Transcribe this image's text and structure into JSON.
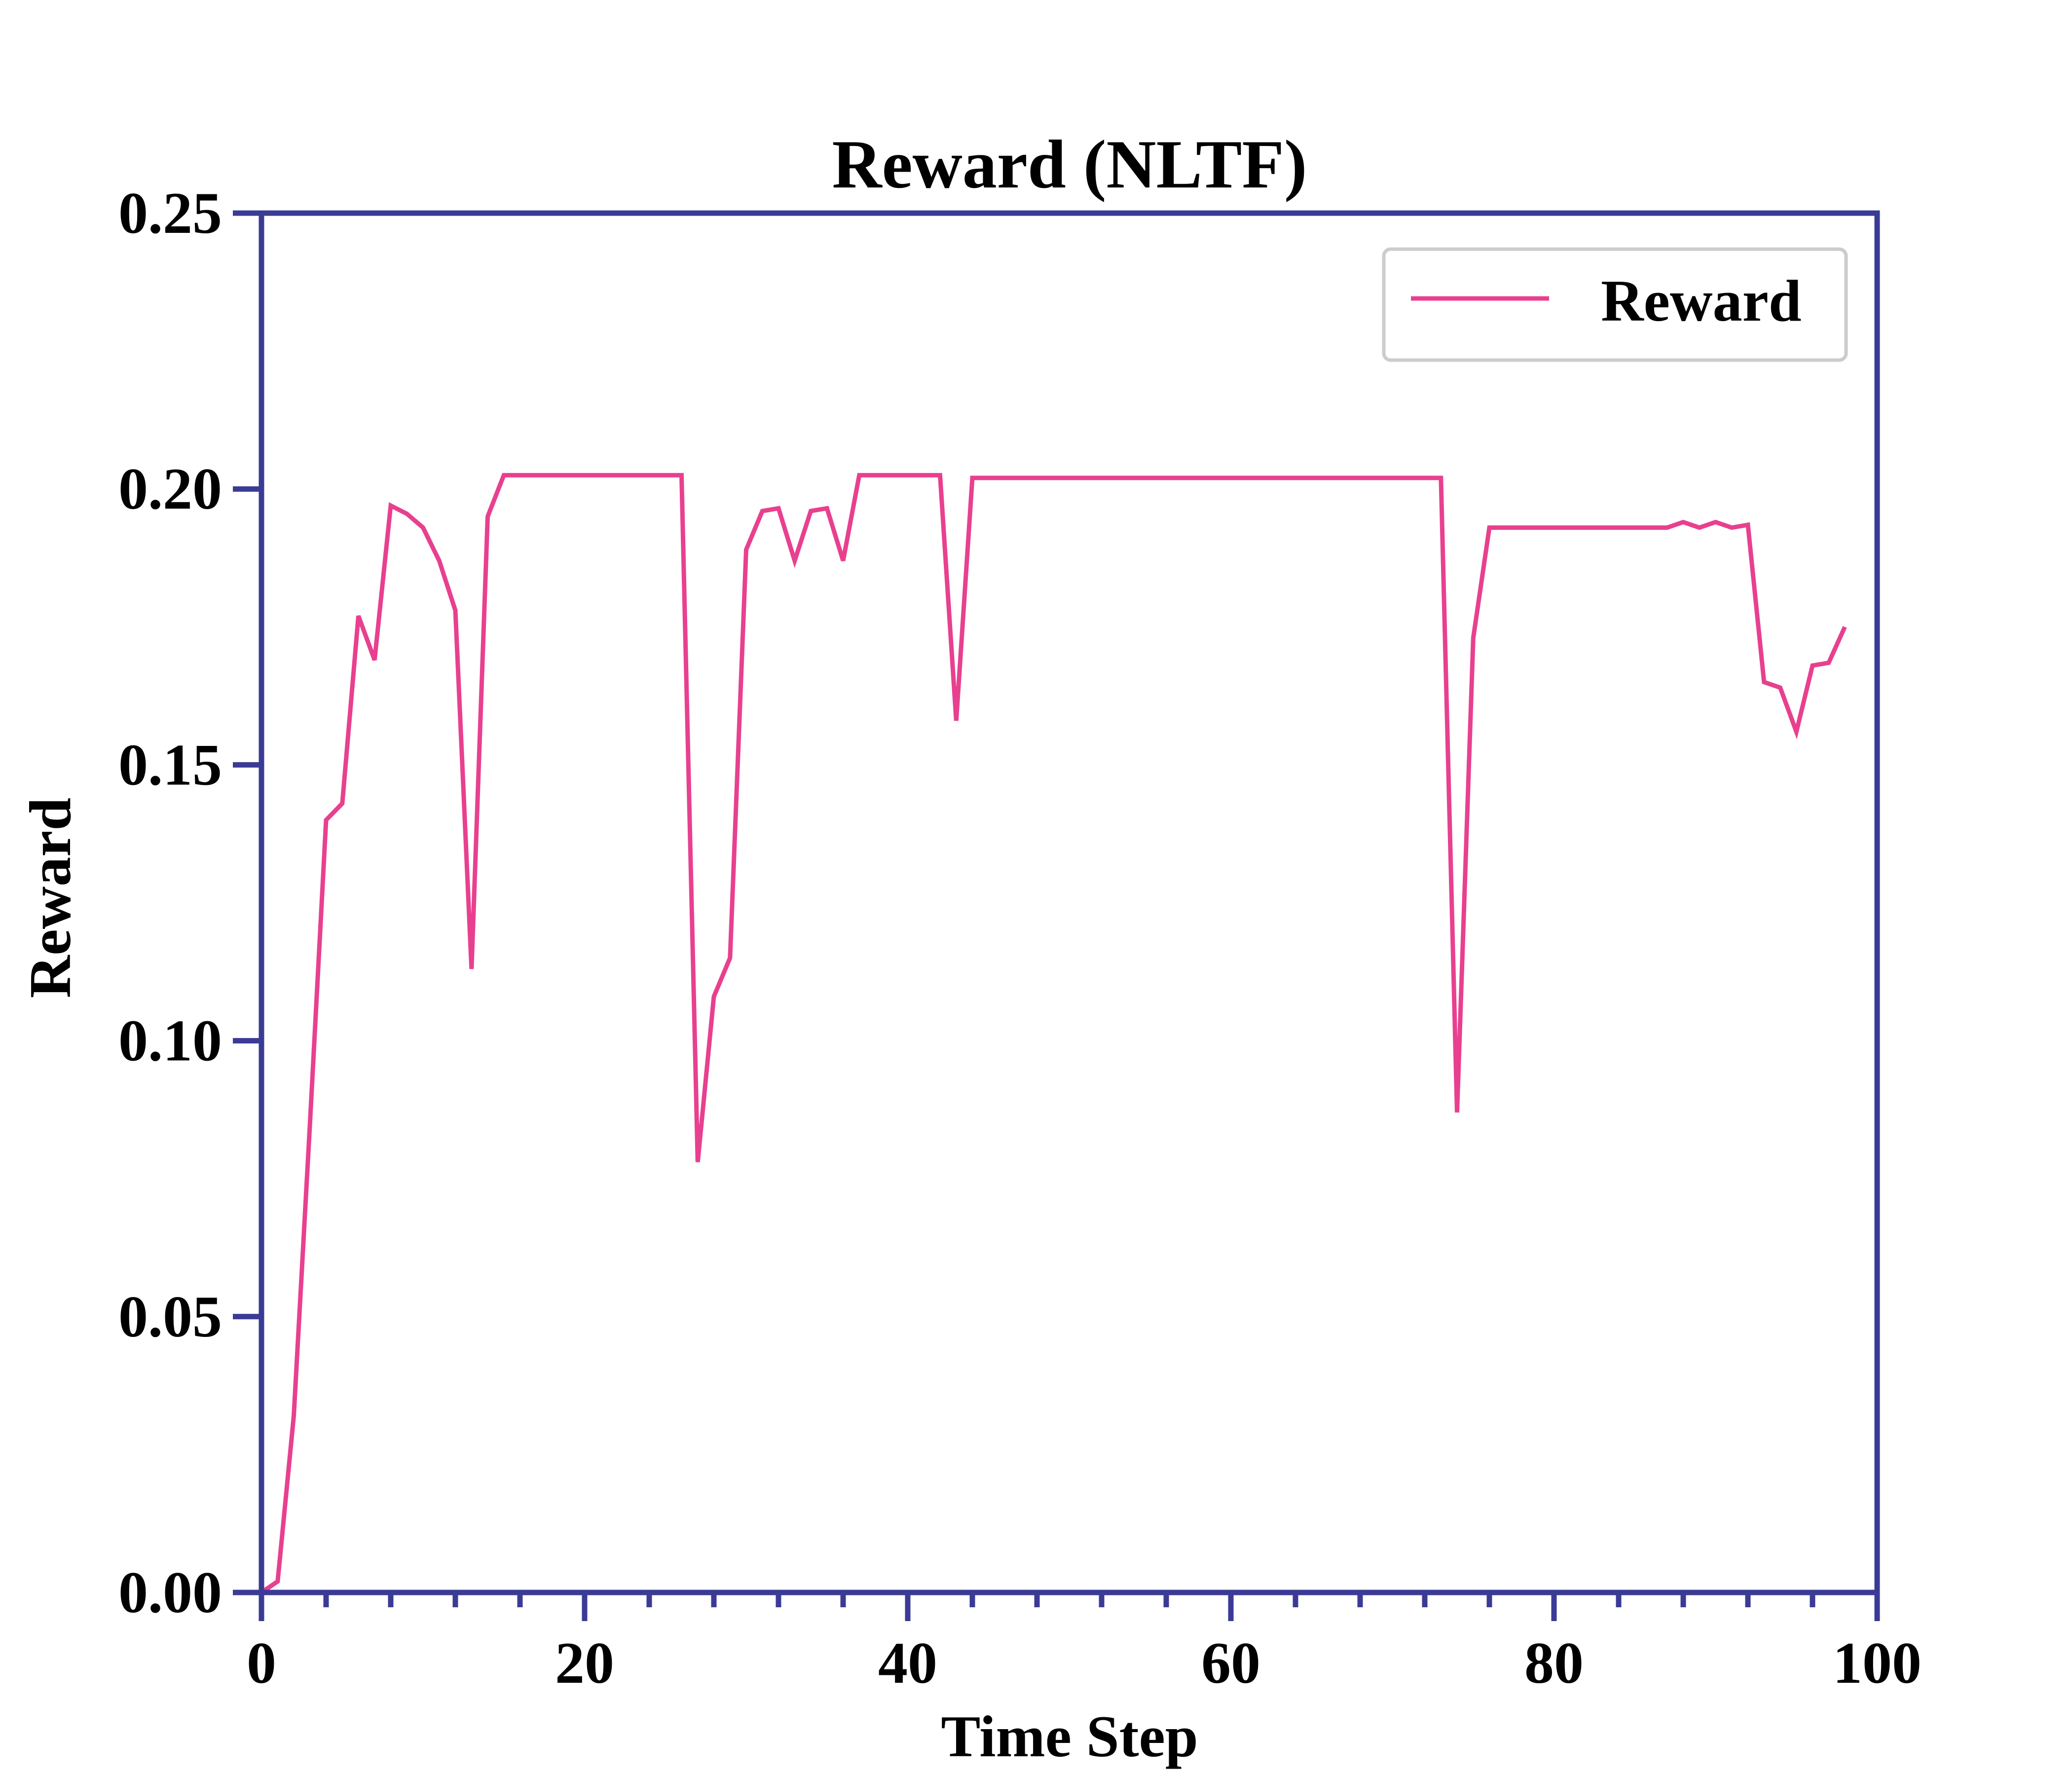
{
  "chart_data": {
    "type": "line",
    "title": "Reward (NLTF)",
    "xlabel": "Time Step",
    "ylabel": "Reward",
    "xlim": [
      0,
      100
    ],
    "ylim": [
      0,
      0.25
    ],
    "xticks": [
      0,
      20,
      40,
      60,
      80,
      100
    ],
    "xtick_labels": [
      "0",
      "20",
      "40",
      "60",
      "80",
      "100"
    ],
    "yticks": [
      0,
      0.05,
      0.1,
      0.15,
      0.2,
      0.25
    ],
    "ytick_labels": [
      "0.00",
      "0.05",
      "0.10",
      "0.15",
      "0.20",
      "0.25"
    ],
    "x_minor_step": 4,
    "grid": false,
    "legend": {
      "position": "top-right",
      "entries": [
        "Reward"
      ]
    },
    "colors": {
      "series": "#e8408f",
      "axes": "#3b3b96",
      "legend_border": "#cccccc"
    },
    "series": [
      {
        "name": "Reward",
        "x": [
          0,
          1,
          2,
          3,
          4,
          5,
          6,
          7,
          8,
          9,
          10,
          11,
          12,
          13,
          14,
          15,
          16,
          17,
          18,
          19,
          20,
          21,
          22,
          23,
          24,
          25,
          26,
          27,
          28,
          29,
          30,
          31,
          32,
          33,
          34,
          35,
          36,
          37,
          38,
          39,
          40,
          41,
          42,
          43,
          44,
          45,
          46,
          47,
          48,
          49,
          50,
          51,
          52,
          53,
          54,
          55,
          56,
          57,
          58,
          59,
          60,
          61,
          62,
          63,
          64,
          65,
          66,
          67,
          68,
          69,
          70,
          71,
          72,
          73,
          74,
          75,
          76,
          77,
          78,
          79,
          80,
          81,
          82,
          83,
          84,
          85,
          86,
          87,
          88,
          89,
          90,
          91,
          92,
          93,
          94,
          95,
          96,
          97,
          98
        ],
        "values": [
          0.0,
          0.002,
          0.032,
          0.085,
          0.14,
          0.143,
          0.177,
          0.169,
          0.197,
          0.1955,
          0.193,
          0.187,
          0.178,
          0.113,
          0.195,
          0.2025,
          0.2025,
          0.2025,
          0.2025,
          0.2025,
          0.2025,
          0.2025,
          0.2025,
          0.2025,
          0.2025,
          0.2025,
          0.2025,
          0.078,
          0.108,
          0.115,
          0.189,
          0.196,
          0.1965,
          0.187,
          0.196,
          0.1965,
          0.187,
          0.2025,
          0.2025,
          0.2025,
          0.2025,
          0.2025,
          0.2025,
          0.158,
          0.202,
          0.202,
          0.202,
          0.202,
          0.202,
          0.202,
          0.202,
          0.202,
          0.202,
          0.202,
          0.202,
          0.202,
          0.202,
          0.202,
          0.202,
          0.202,
          0.202,
          0.202,
          0.202,
          0.202,
          0.202,
          0.202,
          0.202,
          0.202,
          0.202,
          0.202,
          0.202,
          0.202,
          0.202,
          0.202,
          0.087,
          0.173,
          0.193,
          0.193,
          0.193,
          0.193,
          0.193,
          0.193,
          0.193,
          0.193,
          0.193,
          0.193,
          0.193,
          0.193,
          0.194,
          0.193,
          0.194,
          0.193,
          0.1935,
          0.165,
          0.164,
          0.156,
          0.168,
          0.1685,
          0.175
        ]
      }
    ]
  }
}
